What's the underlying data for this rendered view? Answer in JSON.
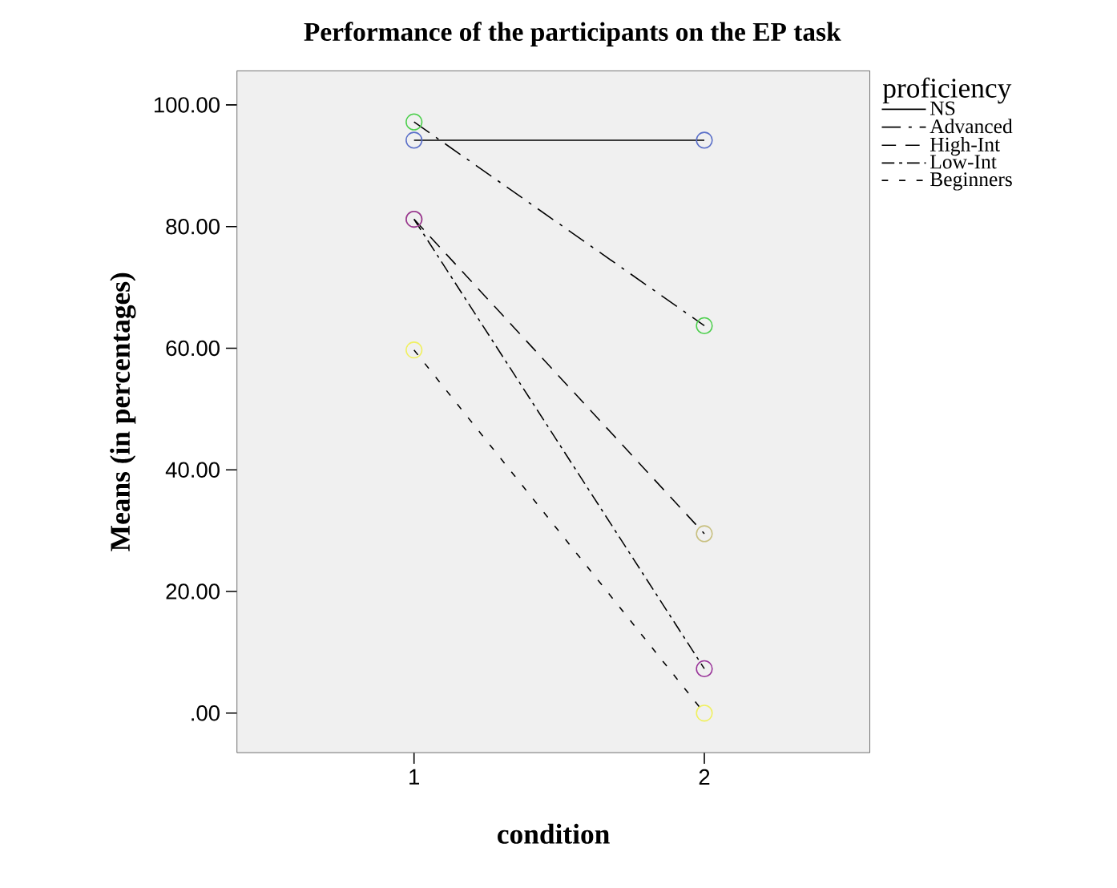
{
  "chart_data": {
    "type": "line",
    "title": "Performance of the participants on the EP task",
    "xlabel": "condition",
    "ylabel": "Means (in percentages)",
    "legend_title": "proficiency",
    "categories": [
      "1",
      "2"
    ],
    "series": [
      {
        "name": "NS",
        "color": "#5a6fc8",
        "values": [
          94.2,
          94.2
        ],
        "line_style": "solid"
      },
      {
        "name": "Advanced",
        "color": "#4ccf4c",
        "values": [
          97.2,
          63.7
        ],
        "line_style": "longdashdot"
      },
      {
        "name": "High-Int",
        "color": "#c8c080",
        "values": [
          81.2,
          29.5
        ],
        "line_style": "dashed"
      },
      {
        "name": "Low-Int",
        "color": "#993399",
        "values": [
          81.2,
          7.3
        ],
        "line_style": "dashdot"
      },
      {
        "name": "Beginners",
        "color": "#f0f060",
        "values": [
          59.7,
          0
        ],
        "line_style": "dotted"
      }
    ],
    "ylim": [
      -6.5,
      105.6
    ],
    "yticks": [
      {
        "value": 0,
        "label": ".00"
      },
      {
        "value": 20,
        "label": "20.00"
      },
      {
        "value": 40,
        "label": "40.00"
      },
      {
        "value": 60,
        "label": "60.00"
      },
      {
        "value": 80,
        "label": "80.00"
      },
      {
        "value": 100,
        "label": "100.00"
      }
    ],
    "grid": false,
    "legend": "right",
    "marker": "circle"
  }
}
